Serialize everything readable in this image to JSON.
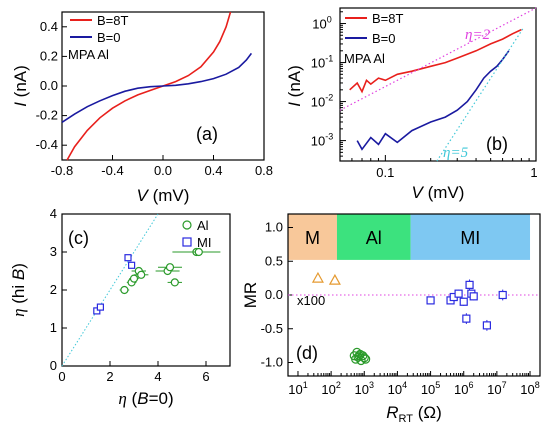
{
  "chart_data": [
    {
      "panel": "(a)",
      "type": "line",
      "xlabel": "V (mV)",
      "ylabel": "I (nA)",
      "xlim": [
        -0.8,
        0.8
      ],
      "ylim": [
        -0.5,
        0.5
      ],
      "xticks": [
        "-0.8",
        "-0.4",
        "0.0",
        "0.4",
        "0.8"
      ],
      "yticks": [
        "-0.4",
        "-0.2",
        "0.0",
        "0.2",
        "0.4"
      ],
      "annotation": "MPA Al",
      "legend_position": "top-left",
      "series": [
        {
          "name": "B=8T",
          "color": "#e8201c",
          "x": [
            -0.76,
            -0.7,
            -0.6,
            -0.5,
            -0.4,
            -0.3,
            -0.2,
            -0.1,
            0.0,
            0.1,
            0.2,
            0.3,
            0.4,
            0.45,
            0.5,
            0.535
          ],
          "y": [
            -0.5,
            -0.41,
            -0.3,
            -0.215,
            -0.15,
            -0.1,
            -0.06,
            -0.03,
            0.0,
            0.03,
            0.07,
            0.13,
            0.23,
            0.3,
            0.4,
            0.5
          ]
        },
        {
          "name": "B=0",
          "color": "#1a1aa0",
          "x": [
            -0.8,
            -0.7,
            -0.6,
            -0.5,
            -0.4,
            -0.3,
            -0.2,
            -0.1,
            0.0,
            0.1,
            0.2,
            0.3,
            0.4,
            0.5,
            0.6,
            0.66,
            0.7
          ],
          "y": [
            -0.245,
            -0.19,
            -0.14,
            -0.1,
            -0.065,
            -0.035,
            -0.015,
            -0.005,
            0.0,
            0.005,
            0.015,
            0.03,
            0.05,
            0.08,
            0.125,
            0.175,
            0.22
          ]
        }
      ]
    },
    {
      "panel": "(b)",
      "type": "line",
      "xscale": "log",
      "yscale": "log",
      "xlabel": "V (mV)",
      "ylabel": "I (nA)",
      "xlim": [
        0.05,
        1.0
      ],
      "ylim": [
        0.0003,
        2.5
      ],
      "xticks": [
        "0.1",
        "1"
      ],
      "yticks": [
        "10^-3",
        "10^-2",
        "10^-1",
        "10^0"
      ],
      "annotation": "MPA Al",
      "legend_position": "top-left",
      "series": [
        {
          "name": "B=8T",
          "color": "#e8201c",
          "x": [
            0.058,
            0.065,
            0.07,
            0.075,
            0.08,
            0.09,
            0.1,
            0.12,
            0.15,
            0.2,
            0.25,
            0.3,
            0.4,
            0.5,
            0.6,
            0.7,
            0.8
          ],
          "y": [
            0.02,
            0.03,
            0.018,
            0.035,
            0.028,
            0.04,
            0.035,
            0.05,
            0.06,
            0.08,
            0.1,
            0.13,
            0.2,
            0.3,
            0.4,
            0.55,
            0.7
          ]
        },
        {
          "name": "B=0",
          "color": "#1a1aa0",
          "x": [
            0.065,
            0.07,
            0.08,
            0.09,
            0.1,
            0.12,
            0.15,
            0.2,
            0.25,
            0.3,
            0.35,
            0.4,
            0.45,
            0.5,
            0.55,
            0.6,
            0.66
          ],
          "y": [
            0.001,
            0.0006,
            0.0012,
            0.0008,
            0.0015,
            0.0009,
            0.0018,
            0.003,
            0.004,
            0.006,
            0.01,
            0.02,
            0.04,
            0.06,
            0.08,
            0.12,
            0.2
          ]
        },
        {
          "name": "η=2",
          "color": "#e040e0",
          "style": "dotted",
          "x": [
            0.05,
            1.0
          ],
          "y": [
            0.006,
            2.5
          ]
        },
        {
          "name": "η=5",
          "color": "#40c8d8",
          "style": "dotted",
          "x": [
            0.22,
            0.83
          ],
          "y": [
            0.0003,
            0.8
          ]
        }
      ],
      "line_labels": [
        "η=2",
        "η=5"
      ]
    },
    {
      "panel": "(c)",
      "type": "scatter",
      "xlabel": "η (B=0)",
      "ylabel": "η (hi B)",
      "xlim": [
        0,
        7
      ],
      "ylim": [
        0,
        4
      ],
      "xticks": [
        "0",
        "2",
        "4",
        "6"
      ],
      "yticks": [
        "0",
        "1",
        "2",
        "3",
        "4"
      ],
      "legend_position": "top-right",
      "series": [
        {
          "name": "Al",
          "color": "#2a9a2a",
          "marker": "circle",
          "x": [
            2.6,
            2.9,
            3.0,
            3.2,
            3.3,
            4.4,
            4.5,
            4.7,
            5.6,
            5.7
          ],
          "y": [
            2.0,
            2.2,
            2.3,
            2.5,
            2.4,
            2.5,
            2.6,
            2.2,
            3.0,
            3.0
          ],
          "xerr": [
            0.2,
            0.2,
            0.2,
            0.3,
            0.3,
            0.5,
            0.5,
            0.3,
            1.0,
            0.3
          ]
        },
        {
          "name": "MI",
          "color": "#2a2ae0",
          "marker": "square",
          "x": [
            1.45,
            1.6,
            2.75,
            2.9
          ],
          "y": [
            1.45,
            1.55,
            2.85,
            2.65
          ]
        },
        {
          "name": "y=x",
          "color": "#40c8d8",
          "style": "dotted",
          "x": [
            0,
            4
          ],
          "y": [
            0,
            4
          ]
        }
      ]
    },
    {
      "panel": "(d)",
      "type": "scatter",
      "xscale": "log",
      "xlabel": "R_RT (Ω)",
      "ylabel": "MR",
      "xlim": [
        10,
        100000000
      ],
      "ylim": [
        -1.2,
        1.2
      ],
      "xticks": [
        "10^1",
        "10^2",
        "10^3",
        "10^4",
        "10^5",
        "10^6",
        "10^7",
        "10^8"
      ],
      "yticks": [
        "-1.0",
        "-0.5",
        "0.0",
        "0.5",
        "1.0"
      ],
      "annotation": "x100",
      "bands": [
        {
          "label": "M",
          "from": 5,
          "to": 150,
          "color": "#f8c89a"
        },
        {
          "label": "Al",
          "from": 150,
          "to": 25000,
          "color": "#3ce27e"
        },
        {
          "label": "MI",
          "from": 25000,
          "to": 100000000,
          "color": "#7ec8f2"
        }
      ],
      "series": [
        {
          "name": "M",
          "color": "#e59a30",
          "marker": "triangle",
          "x": [
            40,
            130
          ],
          "y": [
            0.25,
            0.22
          ]
        },
        {
          "name": "Al",
          "color": "#2a9a2a",
          "marker": "circle",
          "x": [
            500,
            550,
            600,
            650,
            700,
            750,
            800,
            900,
            1000,
            1100
          ],
          "y": [
            -0.9,
            -0.95,
            -0.85,
            -0.92,
            -0.9,
            -0.88,
            -0.97,
            -0.9,
            -0.93,
            -0.95
          ]
        },
        {
          "name": "MI",
          "color": "#2a2ae0",
          "marker": "square",
          "x": [
            100000,
            400000,
            500000,
            700000,
            1000000,
            1200000,
            1500000,
            1700000,
            2000000,
            5000000,
            15000000
          ],
          "y": [
            -0.08,
            -0.08,
            -0.03,
            0.02,
            -0.1,
            -0.35,
            0.15,
            0.02,
            -0.02,
            -0.45,
            0.0
          ],
          "yerr": [
            0.06,
            0.06,
            0.06,
            0.06,
            0.06,
            0.08,
            0.08,
            0.06,
            0.06,
            0.08,
            0.08
          ]
        },
        {
          "name": "MR=0",
          "color": "#e040e0",
          "style": "dotted",
          "x": [
            10,
            100000000
          ],
          "y": [
            0,
            0
          ]
        }
      ]
    }
  ]
}
